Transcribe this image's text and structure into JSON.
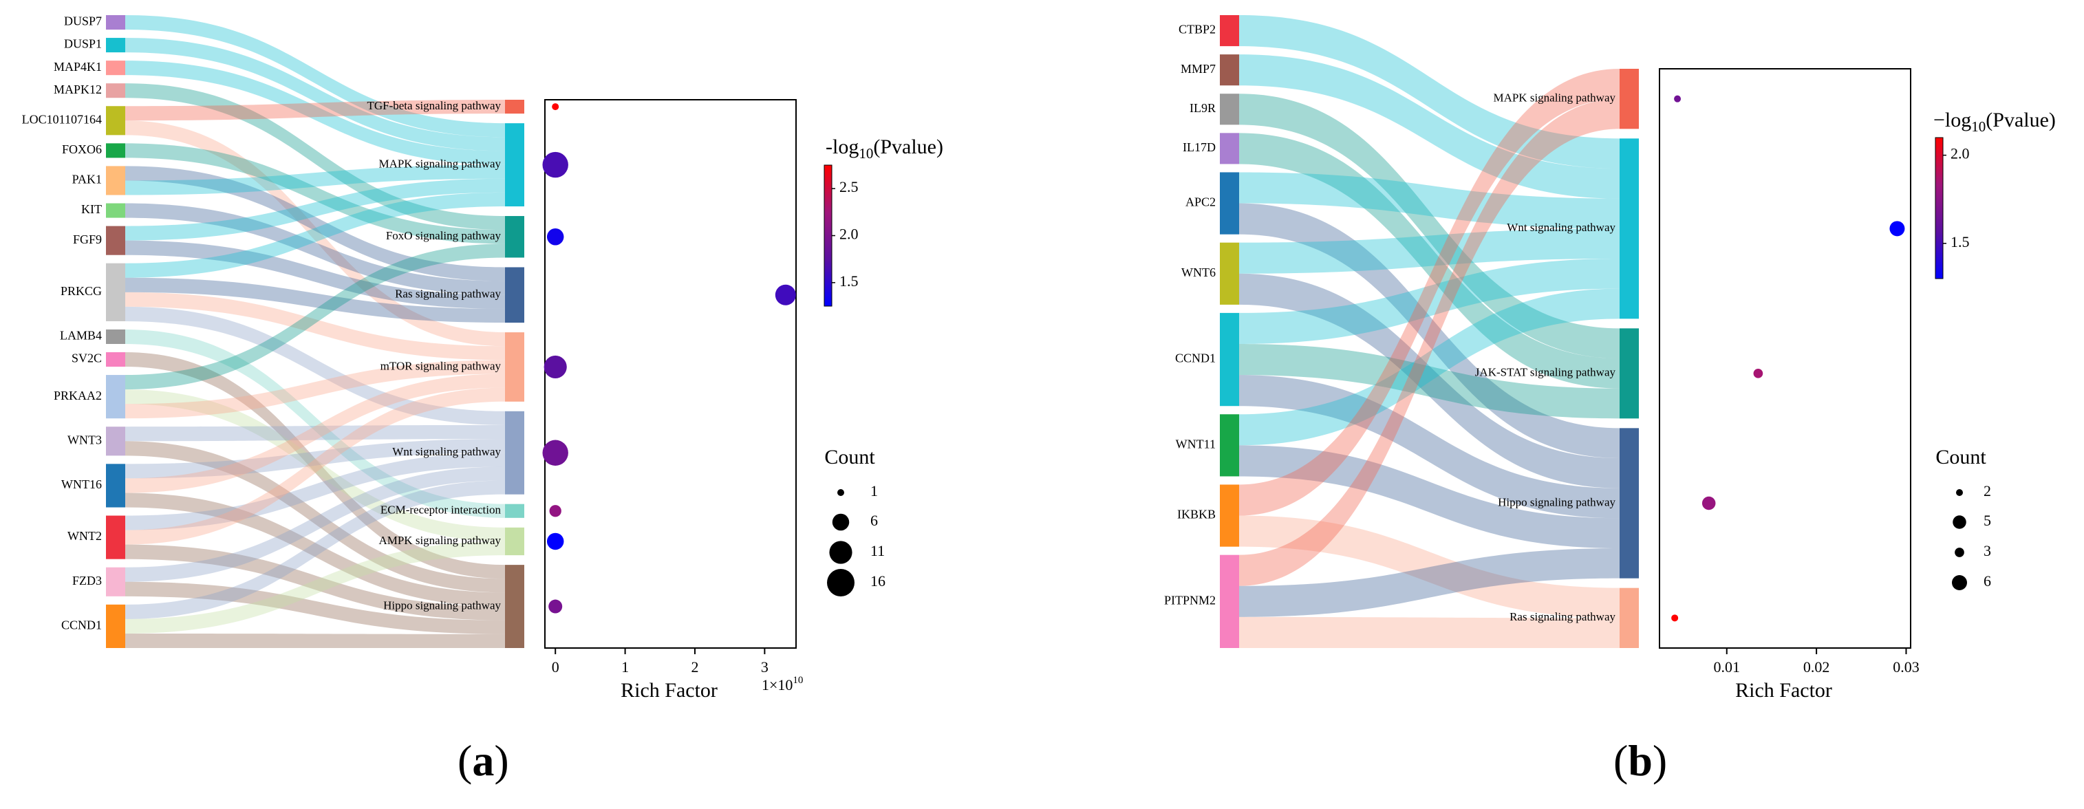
{
  "chart_data": [
    {
      "id": "a",
      "type": "sankey+scatter",
      "panel_label": "a",
      "genes": [
        {
          "name": "DUSP7",
          "color": "#a97fd1"
        },
        {
          "name": "DUSP1",
          "color": "#17bfcf"
        },
        {
          "name": "MAP4K1",
          "color": "#ff9896"
        },
        {
          "name": "MAPK12",
          "color": "#e8a2a2"
        },
        {
          "name": "LOC101107164",
          "color": "#bcbd22"
        },
        {
          "name": "FOXO6",
          "color": "#18a748"
        },
        {
          "name": "PAK1",
          "color": "#ffbb78"
        },
        {
          "name": "KIT",
          "color": "#7ed77c"
        },
        {
          "name": "FGF9",
          "color": "#a3605a"
        },
        {
          "name": "PRKCG",
          "color": "#c7c7c7"
        },
        {
          "name": "LAMB4",
          "color": "#9a9a9a"
        },
        {
          "name": "SV2C",
          "color": "#f781bf"
        },
        {
          "name": "PRKAA2",
          "color": "#aec7e8"
        },
        {
          "name": "WNT3",
          "color": "#c5b0d5"
        },
        {
          "name": "WNT16",
          "color": "#1f77b4"
        },
        {
          "name": "WNT2",
          "color": "#ee3340"
        },
        {
          "name": "FZD3",
          "color": "#f7b6d2"
        },
        {
          "name": "CCND1",
          "color": "#ff8c1a"
        }
      ],
      "pathways": [
        {
          "name": "TGF-beta signaling pathway",
          "color": "#f2644f",
          "count": 1,
          "neglog10p": 2.75,
          "rich_factor": 0.0
        },
        {
          "name": "MAPK signaling pathway",
          "color": "#17bfd3",
          "count": 14,
          "neglog10p": 1.65,
          "rich_factor": 0.0
        },
        {
          "name": "FoxO signaling pathway",
          "color": "#0f9b8e",
          "count": 6,
          "neglog10p": 1.35,
          "rich_factor": 0.0
        },
        {
          "name": "Ras signaling pathway",
          "color": "#3f6498",
          "count": 9,
          "neglog10p": 1.6,
          "rich_factor": 3.3
        },
        {
          "name": "mTOR signaling pathway",
          "color": "#faa98d",
          "count": 11,
          "neglog10p": 1.75,
          "rich_factor": 0.0
        },
        {
          "name": "Wnt signaling pathway",
          "color": "#8fa3c7",
          "count": 14,
          "neglog10p": 1.9,
          "rich_factor": 0.0
        },
        {
          "name": "ECM-receptor interaction",
          "color": "#7dd4c7",
          "count": 3,
          "neglog10p": 2.15,
          "rich_factor": 0.0
        },
        {
          "name": "AMPK signaling pathway",
          "color": "#c5e0a5",
          "count": 6,
          "neglog10p": 1.25,
          "rich_factor": 0.0
        },
        {
          "name": "Hippo signaling pathway",
          "color": "#946b57",
          "count": 4,
          "neglog10p": 1.95,
          "rich_factor": 0.0
        }
      ],
      "links": [
        [
          "DUSP7",
          "MAPK signaling pathway"
        ],
        [
          "DUSP1",
          "MAPK signaling pathway"
        ],
        [
          "MAP4K1",
          "MAPK signaling pathway"
        ],
        [
          "MAPK12",
          "FoxO signaling pathway"
        ],
        [
          "LOC101107164",
          "TGF-beta signaling pathway"
        ],
        [
          "LOC101107164",
          "mTOR signaling pathway"
        ],
        [
          "FOXO6",
          "FoxO signaling pathway"
        ],
        [
          "PAK1",
          "Ras signaling pathway"
        ],
        [
          "PAK1",
          "MAPK signaling pathway"
        ],
        [
          "KIT",
          "Ras signaling pathway"
        ],
        [
          "FGF9",
          "MAPK signaling pathway"
        ],
        [
          "FGF9",
          "Ras signaling pathway"
        ],
        [
          "PRKCG",
          "MAPK signaling pathway"
        ],
        [
          "PRKCG",
          "Ras signaling pathway"
        ],
        [
          "PRKCG",
          "mTOR signaling pathway"
        ],
        [
          "PRKCG",
          "Wnt signaling pathway"
        ],
        [
          "LAMB4",
          "ECM-receptor interaction"
        ],
        [
          "SV2C",
          "Hippo signaling pathway"
        ],
        [
          "PRKAA2",
          "FoxO signaling pathway"
        ],
        [
          "PRKAA2",
          "AMPK signaling pathway"
        ],
        [
          "PRKAA2",
          "mTOR signaling pathway"
        ],
        [
          "WNT3",
          "Wnt signaling pathway"
        ],
        [
          "WNT3",
          "Hippo signaling pathway"
        ],
        [
          "WNT16",
          "Wnt signaling pathway"
        ],
        [
          "WNT16",
          "mTOR signaling pathway"
        ],
        [
          "WNT16",
          "Hippo signaling pathway"
        ],
        [
          "WNT2",
          "Wnt signaling pathway"
        ],
        [
          "WNT2",
          "mTOR signaling pathway"
        ],
        [
          "WNT2",
          "Hippo signaling pathway"
        ],
        [
          "FZD3",
          "Wnt signaling pathway"
        ],
        [
          "FZD3",
          "Hippo signaling pathway"
        ],
        [
          "CCND1",
          "Wnt signaling pathway"
        ],
        [
          "CCND1",
          "AMPK signaling pathway"
        ],
        [
          "CCND1",
          "Hippo signaling pathway"
        ]
      ],
      "xlabel": "Rich Factor",
      "xlim": [
        -0.15,
        3.45
      ],
      "xticks": [
        0,
        1,
        2,
        3
      ],
      "xtick_labels": [
        "0",
        "1",
        "2",
        "3"
      ],
      "x_multiplier": "1×10",
      "x_multiplier_exp": "10",
      "colorbar": {
        "title_pre": "-log",
        "title_sub": "10",
        "title_post": "(Pvalue)",
        "min": 1.25,
        "max": 2.75,
        "ticks": [
          1.5,
          2.0,
          2.5
        ],
        "tick_labels": [
          "1.5",
          "2.0",
          "2.5"
        ]
      },
      "size_legend": {
        "title": "Count",
        "items": [
          {
            "label": "1",
            "value": 1
          },
          {
            "label": "6",
            "value": 6
          },
          {
            "label": "11",
            "value": 11
          },
          {
            "label": "16",
            "value": 16
          }
        ]
      }
    },
    {
      "id": "b",
      "type": "sankey+scatter",
      "panel_label": "b",
      "genes": [
        {
          "name": "CTBP2",
          "color": "#ee3340"
        },
        {
          "name": "MMP7",
          "color": "#9c5b4f"
        },
        {
          "name": "IL9R",
          "color": "#9a9a9a"
        },
        {
          "name": "IL17D",
          "color": "#a97fd1"
        },
        {
          "name": "APC2",
          "color": "#1f77b4"
        },
        {
          "name": "WNT6",
          "color": "#bcbd22"
        },
        {
          "name": "CCND1",
          "color": "#17bfcf"
        },
        {
          "name": "WNT11",
          "color": "#18a748"
        },
        {
          "name": "IKBKB",
          "color": "#ff8c1a"
        },
        {
          "name": "PITPNM2",
          "color": "#f781bf"
        }
      ],
      "pathways": [
        {
          "name": "MAPK signaling pathway",
          "color": "#f2644f",
          "count": 2,
          "neglog10p": 1.65,
          "rich_factor": 0.0045
        },
        {
          "name": "Wnt signaling pathway",
          "color": "#17bfd3",
          "count": 6,
          "neglog10p": 1.3,
          "rich_factor": 0.029
        },
        {
          "name": "JAK-STAT signaling pathway",
          "color": "#0f9b8e",
          "count": 3,
          "neglog10p": 1.85,
          "rich_factor": 0.0135
        },
        {
          "name": "Hippo signaling pathway",
          "color": "#3f6498",
          "count": 5,
          "neglog10p": 1.8,
          "rich_factor": 0.008
        },
        {
          "name": "Ras signaling pathway",
          "color": "#faa98d",
          "count": 2,
          "neglog10p": 2.1,
          "rich_factor": 0.0042
        }
      ],
      "links": [
        [
          "CTBP2",
          "Wnt signaling pathway"
        ],
        [
          "MMP7",
          "Wnt signaling pathway"
        ],
        [
          "IL9R",
          "JAK-STAT signaling pathway"
        ],
        [
          "IL17D",
          "JAK-STAT signaling pathway"
        ],
        [
          "APC2",
          "Wnt signaling pathway"
        ],
        [
          "APC2",
          "Hippo signaling pathway"
        ],
        [
          "WNT6",
          "Wnt signaling pathway"
        ],
        [
          "WNT6",
          "Hippo signaling pathway"
        ],
        [
          "CCND1",
          "Wnt signaling pathway"
        ],
        [
          "CCND1",
          "JAK-STAT signaling pathway"
        ],
        [
          "CCND1",
          "Hippo signaling pathway"
        ],
        [
          "WNT11",
          "Wnt signaling pathway"
        ],
        [
          "WNT11",
          "Hippo signaling pathway"
        ],
        [
          "IKBKB",
          "MAPK signaling pathway"
        ],
        [
          "IKBKB",
          "Ras signaling pathway"
        ],
        [
          "PITPNM2",
          "MAPK signaling pathway"
        ],
        [
          "PITPNM2",
          "Hippo signaling pathway"
        ],
        [
          "PITPNM2",
          "Ras signaling pathway"
        ]
      ],
      "xlabel": "Rich Factor",
      "xlim": [
        0.0025,
        0.0305
      ],
      "xticks": [
        0.01,
        0.02,
        0.03
      ],
      "xtick_labels": [
        "0.01",
        "0.02",
        "0.03"
      ],
      "x_multiplier": "",
      "x_multiplier_exp": "",
      "colorbar": {
        "title_pre": "−log",
        "title_sub": "10",
        "title_post": "(Pvalue)",
        "min": 1.3,
        "max": 2.1,
        "ticks": [
          1.5,
          2.0
        ],
        "tick_labels": [
          "1.5",
          "2.0"
        ]
      },
      "size_legend": {
        "title": "Count",
        "items": [
          {
            "label": "2",
            "value": 2
          },
          {
            "label": "5",
            "value": 5
          },
          {
            "label": "3",
            "value": 3
          },
          {
            "label": "6",
            "value": 6
          }
        ]
      }
    }
  ]
}
